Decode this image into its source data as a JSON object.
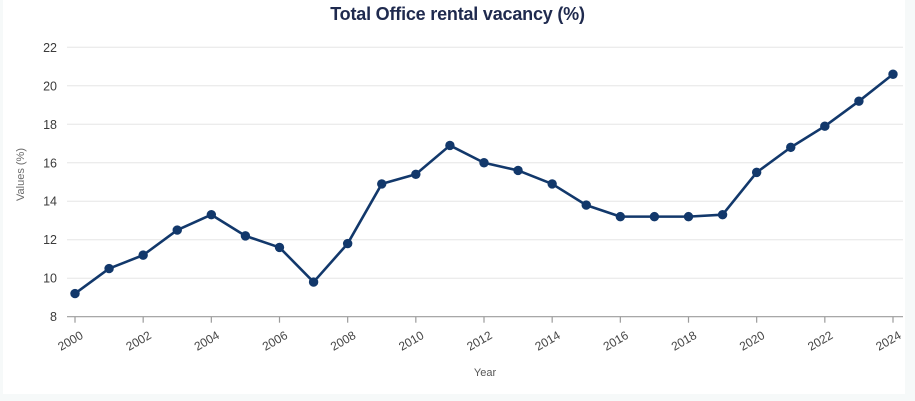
{
  "page": {
    "background_color": "#f6f9f9",
    "card_background_color": "#ffffff"
  },
  "chart_data": {
    "type": "line",
    "title": "Total Office rental vacancy (%)",
    "xlabel": "Year",
    "ylabel": "Values (%)",
    "x": [
      2000,
      2001,
      2002,
      2003,
      2004,
      2005,
      2006,
      2007,
      2008,
      2009,
      2010,
      2011,
      2012,
      2013,
      2014,
      2015,
      2016,
      2017,
      2018,
      2019,
      2020,
      2021,
      2022,
      2023,
      2024
    ],
    "series": [
      {
        "name": "Total Office rental vacancy (%)",
        "values": [
          9.2,
          10.5,
          11.2,
          12.5,
          13.3,
          12.2,
          11.6,
          9.8,
          11.8,
          14.9,
          15.4,
          16.9,
          16.0,
          15.6,
          14.9,
          13.8,
          13.2,
          13.2,
          13.2,
          13.3,
          15.5,
          16.8,
          17.9,
          19.2,
          20.6
        ]
      }
    ],
    "ylim": [
      8,
      22
    ],
    "ytick_step": 2,
    "ytick_labels": [
      "8",
      "10",
      "12",
      "14",
      "16",
      "18",
      "20",
      "22"
    ],
    "xtick_step": 2,
    "xtick_labels": [
      "2000",
      "2002",
      "2004",
      "2006",
      "2008",
      "2010",
      "2012",
      "2014",
      "2016",
      "2018",
      "2020",
      "2022",
      "2024"
    ],
    "grid": "horizontal",
    "legend": "none",
    "line_color": "#12386b",
    "marker": "circle",
    "title_color": "#1f2a4e",
    "axis_color": "#9b9b9b",
    "gridline_color": "#e5e5e5",
    "tick_label_color": "#454545"
  }
}
